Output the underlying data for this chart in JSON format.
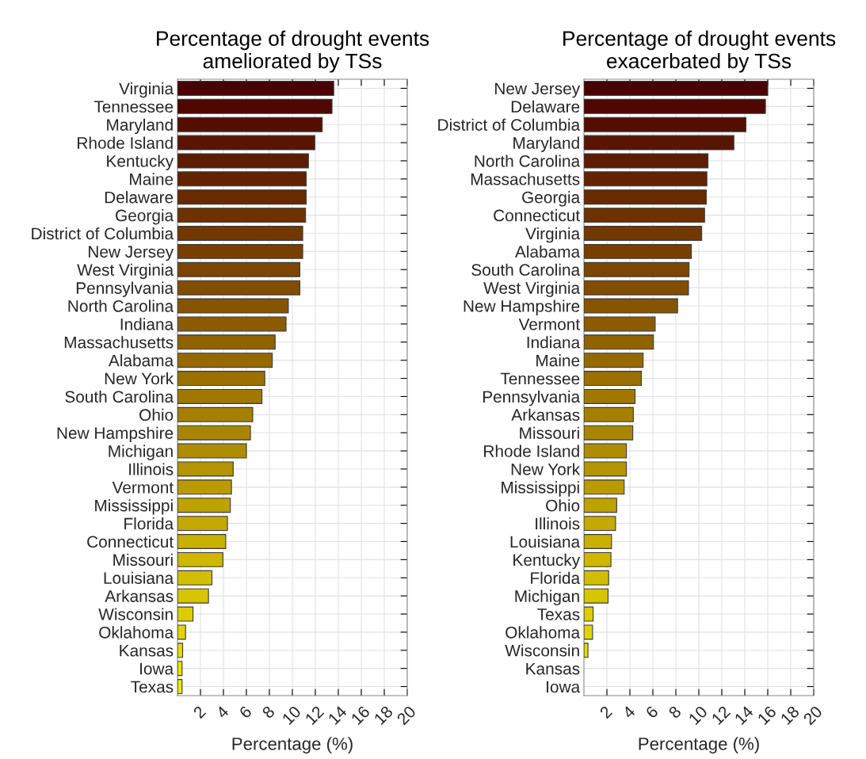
{
  "chart_data": [
    {
      "type": "bar",
      "orientation": "horizontal",
      "title": "Percentage of drought events\nameliorated by TSs",
      "xlabel": "Percentage (%)",
      "xlim": [
        0,
        20
      ],
      "xticks": [
        2,
        4,
        6,
        8,
        10,
        12,
        14,
        16,
        18,
        20
      ],
      "grid": true,
      "categories": [
        "Virginia",
        "Tennessee",
        "Maryland",
        "Rhode Island",
        "Kentucky",
        "Maine",
        "Delaware",
        "Georgia",
        "District of Columbia",
        "New Jersey",
        "West Virginia",
        "Pennsylvania",
        "North Carolina",
        "Indiana",
        "Massachusetts",
        "Alabama",
        "New York",
        "South Carolina",
        "Ohio",
        "New Hampshire",
        "Michigan",
        "Illinois",
        "Vermont",
        "Mississippi",
        "Florida",
        "Connecticut",
        "Missouri",
        "Louisiana",
        "Arkansas",
        "Wisconsin",
        "Oklahoma",
        "Kansas",
        "Iowa",
        "Texas"
      ],
      "values": [
        13.6,
        13.45,
        12.6,
        11.95,
        11.4,
        11.2,
        11.2,
        11.15,
        10.9,
        10.9,
        10.65,
        10.65,
        9.65,
        9.45,
        8.5,
        8.25,
        7.6,
        7.35,
        6.55,
        6.35,
        6.0,
        4.85,
        4.7,
        4.6,
        4.35,
        4.2,
        3.95,
        3.0,
        2.7,
        1.35,
        0.7,
        0.45,
        0.4,
        0.4
      ],
      "colors": [
        "#4a0000",
        "#4f0700",
        "#540e00",
        "#591500",
        "#5e1c00",
        "#632300",
        "#682a00",
        "#6d3100",
        "#723800",
        "#773f00",
        "#7c4600",
        "#814d00",
        "#865400",
        "#8c5b00",
        "#916200",
        "#966900",
        "#9b7000",
        "#a07800",
        "#a57f00",
        "#aa8600",
        "#af8d00",
        "#b49400",
        "#b99b00",
        "#bea200",
        "#c3a900",
        "#c8b000",
        "#cdb700",
        "#d2be00",
        "#d7c500",
        "#dccc00",
        "#e1d300",
        "#e6da00",
        "#ebe100",
        "#f0e800"
      ]
    },
    {
      "type": "bar",
      "orientation": "horizontal",
      "title": "Percentage of drought events\nexacerbated by TSs",
      "xlabel": "Percentage (%)",
      "xlim": [
        0,
        20
      ],
      "xticks": [
        2,
        4,
        6,
        8,
        10,
        12,
        14,
        16,
        18,
        20
      ],
      "grid": true,
      "categories": [
        "New Jersey",
        "Delaware",
        "District of Columbia",
        "Maryland",
        "North Carolina",
        "Massachusetts",
        "Georgia",
        "Connecticut",
        "Virginia",
        "Alabama",
        "South Carolina",
        "West Virginia",
        "New Hampshire",
        "Vermont",
        "Indiana",
        "Maine",
        "Tennessee",
        "Pennsylvania",
        "Arkansas",
        "Missouri",
        "Rhode Island",
        "New York",
        "Mississippi",
        "Ohio",
        "Illinois",
        "Louisiana",
        "Kentucky",
        "Florida",
        "Michigan",
        "Texas",
        "Oklahoma",
        "Wisconsin",
        "Kansas",
        "Iowa"
      ],
      "values": [
        16.0,
        15.8,
        14.1,
        13.05,
        10.8,
        10.7,
        10.65,
        10.5,
        10.25,
        9.35,
        9.15,
        9.1,
        8.15,
        6.2,
        6.05,
        5.15,
        5.0,
        4.45,
        4.3,
        4.25,
        3.7,
        3.7,
        3.5,
        2.85,
        2.75,
        2.4,
        2.35,
        2.15,
        2.1,
        0.8,
        0.75,
        0.35,
        0,
        0
      ],
      "colors": [
        "#4a0000",
        "#4f0700",
        "#540e00",
        "#591500",
        "#5e1c00",
        "#632300",
        "#682a00",
        "#6d3100",
        "#723800",
        "#773f00",
        "#7c4600",
        "#814d00",
        "#865400",
        "#8c5b00",
        "#916200",
        "#966900",
        "#9b7000",
        "#a07800",
        "#a57f00",
        "#aa8600",
        "#af8d00",
        "#b49400",
        "#b99b00",
        "#bea200",
        "#c3a900",
        "#c8b000",
        "#cdb700",
        "#d2be00",
        "#d7c500",
        "#dccc00",
        "#e1d300",
        "#e6da00",
        "#ebe100",
        "#f0e800"
      ]
    }
  ]
}
